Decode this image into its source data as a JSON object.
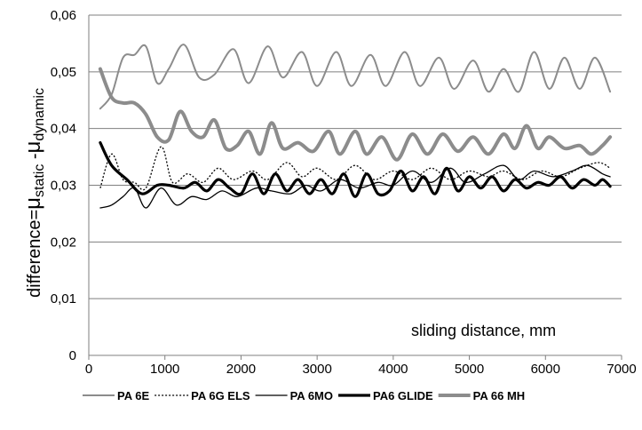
{
  "chart_data": {
    "type": "line",
    "ylabel_parts": [
      "difference=",
      "μ",
      "static",
      " -",
      "μ",
      "dynamic"
    ],
    "annotation": "sliding distance, mm",
    "xlim": [
      0,
      7000
    ],
    "ylim": [
      0,
      0.06
    ],
    "x_ticks": [
      0,
      1000,
      2000,
      3000,
      4000,
      5000,
      6000,
      7000
    ],
    "x_tick_labels": [
      "0",
      "1000",
      "2000",
      "3000",
      "4000",
      "5000",
      "6000",
      "7000"
    ],
    "y_ticks": [
      0,
      0.01,
      0.02,
      0.03,
      0.04,
      0.05,
      0.06
    ],
    "y_tick_labels": [
      "0",
      "0,01",
      "0,02",
      "0,03",
      "0,04",
      "0,05",
      "0,06"
    ],
    "grid": "horizontal",
    "legend_position": "bottom",
    "series": [
      {
        "name": "PA 6E",
        "style": {
          "color": "#8c8c8c",
          "width": 2,
          "dash": ""
        },
        "points": [
          [
            150,
            0.0435
          ],
          [
            300,
            0.046
          ],
          [
            450,
            0.0525
          ],
          [
            600,
            0.053
          ],
          [
            750,
            0.0545
          ],
          [
            900,
            0.048
          ],
          [
            1050,
            0.0505
          ],
          [
            1250,
            0.0548
          ],
          [
            1450,
            0.049
          ],
          [
            1650,
            0.0495
          ],
          [
            1900,
            0.054
          ],
          [
            2100,
            0.048
          ],
          [
            2350,
            0.0545
          ],
          [
            2550,
            0.049
          ],
          [
            2800,
            0.0535
          ],
          [
            3000,
            0.0475
          ],
          [
            3250,
            0.0535
          ],
          [
            3450,
            0.0475
          ],
          [
            3700,
            0.053
          ],
          [
            3900,
            0.0475
          ],
          [
            4150,
            0.0535
          ],
          [
            4350,
            0.0475
          ],
          [
            4600,
            0.0525
          ],
          [
            4800,
            0.047
          ],
          [
            5050,
            0.052
          ],
          [
            5250,
            0.0465
          ],
          [
            5450,
            0.0505
          ],
          [
            5650,
            0.0465
          ],
          [
            5850,
            0.0535
          ],
          [
            6050,
            0.047
          ],
          [
            6250,
            0.0525
          ],
          [
            6450,
            0.047
          ],
          [
            6650,
            0.0525
          ],
          [
            6850,
            0.0465
          ]
        ]
      },
      {
        "name": "PA 6G ELS",
        "style": {
          "color": "#000000",
          "width": 1.3,
          "dash": "2,2"
        },
        "points": [
          [
            150,
            0.0295
          ],
          [
            300,
            0.0355
          ],
          [
            450,
            0.031
          ],
          [
            600,
            0.0305
          ],
          [
            750,
            0.0295
          ],
          [
            950,
            0.0368
          ],
          [
            1100,
            0.0305
          ],
          [
            1300,
            0.032
          ],
          [
            1500,
            0.0305
          ],
          [
            1700,
            0.033
          ],
          [
            1900,
            0.031
          ],
          [
            2150,
            0.0325
          ],
          [
            2350,
            0.031
          ],
          [
            2600,
            0.034
          ],
          [
            2800,
            0.0315
          ],
          [
            3000,
            0.033
          ],
          [
            3250,
            0.031
          ],
          [
            3500,
            0.0335
          ],
          [
            3750,
            0.031
          ],
          [
            4000,
            0.0325
          ],
          [
            4250,
            0.031
          ],
          [
            4500,
            0.033
          ],
          [
            4750,
            0.031
          ],
          [
            5000,
            0.0325
          ],
          [
            5250,
            0.0315
          ],
          [
            5450,
            0.0325
          ],
          [
            5700,
            0.031
          ],
          [
            5950,
            0.0325
          ],
          [
            6200,
            0.0315
          ],
          [
            6450,
            0.033
          ],
          [
            6700,
            0.034
          ],
          [
            6850,
            0.033
          ]
        ]
      },
      {
        "name": "PA 6MO",
        "style": {
          "color": "#000000",
          "width": 1.3,
          "dash": ""
        },
        "points": [
          [
            150,
            0.026
          ],
          [
            300,
            0.0265
          ],
          [
            450,
            0.028
          ],
          [
            600,
            0.0295
          ],
          [
            750,
            0.026
          ],
          [
            950,
            0.0295
          ],
          [
            1150,
            0.0265
          ],
          [
            1350,
            0.028
          ],
          [
            1550,
            0.0275
          ],
          [
            1750,
            0.029
          ],
          [
            1950,
            0.028
          ],
          [
            2200,
            0.0295
          ],
          [
            2400,
            0.029
          ],
          [
            2650,
            0.0285
          ],
          [
            2850,
            0.03
          ],
          [
            3050,
            0.029
          ],
          [
            3300,
            0.031
          ],
          [
            3550,
            0.0295
          ],
          [
            3800,
            0.0305
          ],
          [
            4000,
            0.03
          ],
          [
            4250,
            0.0325
          ],
          [
            4500,
            0.0305
          ],
          [
            4750,
            0.033
          ],
          [
            4950,
            0.0305
          ],
          [
            5200,
            0.032
          ],
          [
            5450,
            0.0335
          ],
          [
            5650,
            0.031
          ],
          [
            5850,
            0.0325
          ],
          [
            6100,
            0.0315
          ],
          [
            6350,
            0.0325
          ],
          [
            6550,
            0.0335
          ],
          [
            6750,
            0.032
          ],
          [
            6850,
            0.0315
          ]
        ]
      },
      {
        "name": "PA6 GLIDE",
        "style": {
          "color": "#000000",
          "width": 3.2,
          "dash": ""
        },
        "points": [
          [
            150,
            0.0375
          ],
          [
            300,
            0.0335
          ],
          [
            500,
            0.031
          ],
          [
            700,
            0.0285
          ],
          [
            900,
            0.03
          ],
          [
            1050,
            0.03
          ],
          [
            1250,
            0.0295
          ],
          [
            1400,
            0.0305
          ],
          [
            1550,
            0.029
          ],
          [
            1700,
            0.031
          ],
          [
            1850,
            0.0295
          ],
          [
            2000,
            0.0285
          ],
          [
            2150,
            0.032
          ],
          [
            2300,
            0.0285
          ],
          [
            2450,
            0.032
          ],
          [
            2600,
            0.029
          ],
          [
            2750,
            0.031
          ],
          [
            2900,
            0.0285
          ],
          [
            3050,
            0.031
          ],
          [
            3200,
            0.0285
          ],
          [
            3350,
            0.032
          ],
          [
            3500,
            0.028
          ],
          [
            3650,
            0.032
          ],
          [
            3800,
            0.0285
          ],
          [
            3950,
            0.029
          ],
          [
            4100,
            0.0325
          ],
          [
            4250,
            0.029
          ],
          [
            4400,
            0.0315
          ],
          [
            4550,
            0.0285
          ],
          [
            4700,
            0.033
          ],
          [
            4850,
            0.029
          ],
          [
            5000,
            0.0315
          ],
          [
            5150,
            0.0295
          ],
          [
            5300,
            0.0315
          ],
          [
            5450,
            0.029
          ],
          [
            5600,
            0.031
          ],
          [
            5750,
            0.0295
          ],
          [
            5900,
            0.0305
          ],
          [
            6050,
            0.03
          ],
          [
            6200,
            0.0315
          ],
          [
            6350,
            0.0295
          ],
          [
            6500,
            0.031
          ],
          [
            6650,
            0.03
          ],
          [
            6750,
            0.031
          ],
          [
            6850,
            0.0298
          ]
        ]
      },
      {
        "name": "PA 66 MH",
        "style": {
          "color": "#8c8c8c",
          "width": 4,
          "dash": ""
        },
        "points": [
          [
            150,
            0.0505
          ],
          [
            300,
            0.0455
          ],
          [
            450,
            0.0445
          ],
          [
            600,
            0.0445
          ],
          [
            750,
            0.0425
          ],
          [
            900,
            0.0385
          ],
          [
            1050,
            0.038
          ],
          [
            1200,
            0.043
          ],
          [
            1350,
            0.0395
          ],
          [
            1500,
            0.0385
          ],
          [
            1650,
            0.0415
          ],
          [
            1800,
            0.0365
          ],
          [
            1950,
            0.037
          ],
          [
            2100,
            0.0395
          ],
          [
            2250,
            0.0355
          ],
          [
            2400,
            0.041
          ],
          [
            2550,
            0.0365
          ],
          [
            2750,
            0.0375
          ],
          [
            2950,
            0.036
          ],
          [
            3150,
            0.0395
          ],
          [
            3300,
            0.0355
          ],
          [
            3500,
            0.0395
          ],
          [
            3650,
            0.0355
          ],
          [
            3850,
            0.0385
          ],
          [
            4050,
            0.0345
          ],
          [
            4250,
            0.039
          ],
          [
            4450,
            0.0355
          ],
          [
            4650,
            0.039
          ],
          [
            4850,
            0.036
          ],
          [
            5050,
            0.0385
          ],
          [
            5250,
            0.0355
          ],
          [
            5450,
            0.039
          ],
          [
            5600,
            0.0365
          ],
          [
            5750,
            0.0405
          ],
          [
            5900,
            0.0365
          ],
          [
            6050,
            0.0385
          ],
          [
            6250,
            0.0365
          ],
          [
            6450,
            0.037
          ],
          [
            6600,
            0.0355
          ],
          [
            6750,
            0.037
          ],
          [
            6850,
            0.0385
          ]
        ]
      }
    ]
  }
}
